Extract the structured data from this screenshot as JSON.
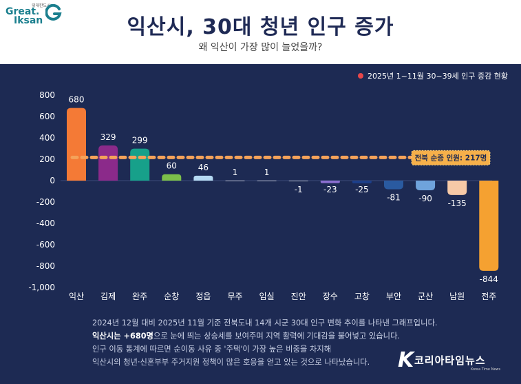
{
  "header": {
    "logo_small": "위대한도시",
    "logo_great": "Great.",
    "logo_iksan": "Iksan",
    "title": "익산시, 30대 청년 인구 증가",
    "subtitle": "왜 익산이 가장 많이 늘었을까?"
  },
  "colors": {
    "background": "#1d2a53",
    "header_bg": "#ffffff",
    "title": "#1f2a55",
    "avg_line": "#f4a25a",
    "legend_dot": "#e8474a"
  },
  "chart_data": {
    "type": "bar",
    "legend": "2025년 1~11월 30~39세 인구 증감 현황",
    "legend_placement": "top-right",
    "categories": [
      "익산",
      "김제",
      "완주",
      "순창",
      "정읍",
      "무주",
      "임실",
      "진안",
      "장수",
      "고창",
      "부안",
      "군산",
      "남원",
      "전주"
    ],
    "values": [
      680,
      329,
      299,
      60,
      46,
      1,
      1,
      -1,
      -23,
      -25,
      -81,
      -90,
      -135,
      -844
    ],
    "value_labels": [
      "680",
      "329",
      "299",
      "60",
      "46",
      "1",
      "1",
      "-1",
      "-23",
      "-25",
      "-81",
      "-90",
      "-135",
      "-844"
    ],
    "bar_colors": [
      "#f47a36",
      "#8b2a8a",
      "#17a08a",
      "#7cc04a",
      "#b5d9f2",
      "#ffffff",
      "#ffffff",
      "#ffffff",
      "#8b6fd0",
      "#1c3f8a",
      "#2a5aa0",
      "#6fa3dc",
      "#f6c9a7",
      "#f5a131"
    ],
    "ylim": [
      -1000,
      800
    ],
    "yticks": [
      800,
      600,
      400,
      200,
      0,
      -200,
      -400,
      -600,
      -800,
      -1000
    ],
    "ytick_labels": [
      "800",
      "600",
      "400",
      "200",
      "0",
      "-200",
      "-400",
      "-600",
      "-800",
      "-1,000"
    ],
    "reference_line": {
      "value": 217,
      "label": "전북 순증 인원: 217명"
    },
    "grid": false
  },
  "description": {
    "line1": "2024년 12월 대비 2025년 11월 기준 전북도내 14개 시군 30대 인구 변화 추이를 나타낸 그래프입니다.",
    "line2_bold": "익산시는 +680명",
    "line2_rest": "으로 눈에 띄는 상승세를 보여주며 지역 활력에 기대감을 불어넣고 있습니다.",
    "line3": "인구 이동 통계에 따르면 순이동 사유 중 '주택'이 가장 높은 비중을 차지해",
    "line4": "익산시의 청년·신혼부부 주거지원 정책이 많은 호응을 얻고 있는 것으로 나타났습니다."
  },
  "brand": {
    "mark": "K",
    "name": "코리아타임뉴스",
    "sub": "Korea Time News"
  }
}
